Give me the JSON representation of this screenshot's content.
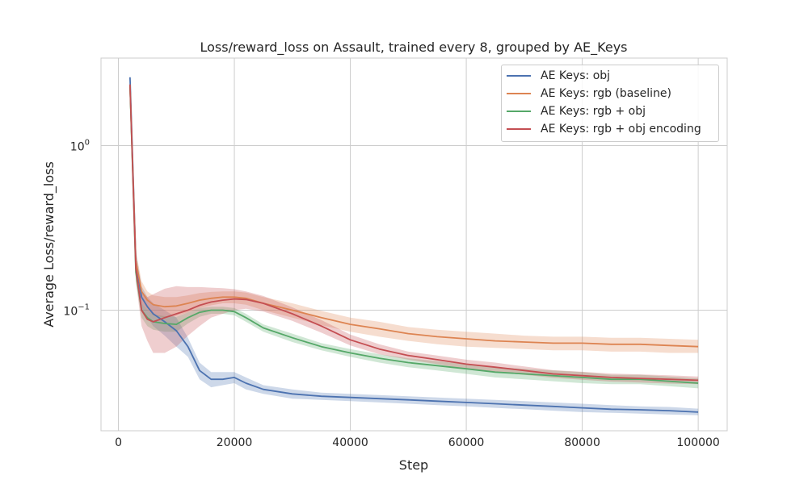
{
  "chart_data": {
    "type": "line",
    "title": "Loss/reward_loss on Assault, trained every 8, grouped by AE_Keys",
    "xlabel": "Step",
    "ylabel": "Average Loss/reward_loss",
    "xlim": [
      -3000,
      105000
    ],
    "ylim": [
      0.0185,
      3.4
    ],
    "yscale": "log",
    "grid": true,
    "legend_position": "top-right",
    "x_ticks": [
      0,
      20000,
      40000,
      60000,
      80000,
      100000
    ],
    "x_tick_labels": [
      "0",
      "20000",
      "40000",
      "60000",
      "80000",
      "100000"
    ],
    "y_ticks": [
      0.1,
      1
    ],
    "y_tick_labels": [
      {
        "base": "10",
        "exp": "−1"
      },
      {
        "base": "10",
        "exp": "0"
      }
    ],
    "x": [
      2000,
      3000,
      4000,
      5000,
      6000,
      8000,
      10000,
      12000,
      14000,
      16000,
      18000,
      20000,
      22000,
      25000,
      30000,
      35000,
      40000,
      45000,
      50000,
      55000,
      60000,
      65000,
      70000,
      75000,
      80000,
      85000,
      90000,
      95000,
      100000
    ],
    "series": [
      {
        "name": "AE Keys: obj",
        "color": "#4c72b0",
        "values": [
          2.6,
          0.2,
          0.12,
          0.105,
          0.095,
          0.085,
          0.075,
          0.06,
          0.043,
          0.038,
          0.038,
          0.039,
          0.036,
          0.033,
          0.031,
          0.03,
          0.0295,
          0.029,
          0.0285,
          0.028,
          0.0275,
          0.027,
          0.0265,
          0.026,
          0.0255,
          0.025,
          0.0248,
          0.0245,
          0.024
        ],
        "lower": [
          2.5,
          0.17,
          0.1,
          0.09,
          0.08,
          0.07,
          0.06,
          0.052,
          0.038,
          0.034,
          0.035,
          0.036,
          0.033,
          0.031,
          0.029,
          0.0285,
          0.028,
          0.0275,
          0.027,
          0.0265,
          0.026,
          0.0255,
          0.025,
          0.0245,
          0.024,
          0.0238,
          0.0235,
          0.0232,
          0.023
        ],
        "upper": [
          2.7,
          0.23,
          0.14,
          0.12,
          0.11,
          0.1,
          0.09,
          0.068,
          0.048,
          0.042,
          0.042,
          0.042,
          0.039,
          0.035,
          0.033,
          0.0315,
          0.031,
          0.0305,
          0.03,
          0.0295,
          0.029,
          0.0285,
          0.028,
          0.0275,
          0.027,
          0.0265,
          0.026,
          0.0258,
          0.0252
        ]
      },
      {
        "name": "AE Keys: rgb (baseline)",
        "color": "#dd8452",
        "values": [
          2.3,
          0.2,
          0.13,
          0.115,
          0.108,
          0.105,
          0.106,
          0.11,
          0.115,
          0.118,
          0.12,
          0.12,
          0.118,
          0.11,
          0.1,
          0.09,
          0.082,
          0.077,
          0.072,
          0.069,
          0.067,
          0.065,
          0.064,
          0.063,
          0.063,
          0.062,
          0.062,
          0.061,
          0.06
        ],
        "lower": [
          2.2,
          0.17,
          0.11,
          0.1,
          0.093,
          0.09,
          0.092,
          0.097,
          0.103,
          0.107,
          0.11,
          0.11,
          0.108,
          0.1,
          0.09,
          0.081,
          0.074,
          0.069,
          0.065,
          0.062,
          0.06,
          0.059,
          0.058,
          0.057,
          0.057,
          0.056,
          0.056,
          0.055,
          0.055
        ],
        "upper": [
          2.4,
          0.23,
          0.15,
          0.13,
          0.123,
          0.12,
          0.12,
          0.123,
          0.127,
          0.129,
          0.13,
          0.13,
          0.128,
          0.12,
          0.11,
          0.099,
          0.09,
          0.085,
          0.079,
          0.076,
          0.074,
          0.072,
          0.07,
          0.069,
          0.069,
          0.068,
          0.068,
          0.067,
          0.066
        ]
      },
      {
        "name": "AE Keys: rgb + obj",
        "color": "#55a868",
        "values": [
          2.3,
          0.17,
          0.1,
          0.09,
          0.085,
          0.083,
          0.082,
          0.09,
          0.097,
          0.1,
          0.1,
          0.098,
          0.09,
          0.078,
          0.068,
          0.06,
          0.055,
          0.051,
          0.048,
          0.046,
          0.044,
          0.042,
          0.041,
          0.04,
          0.039,
          0.038,
          0.038,
          0.037,
          0.036
        ],
        "lower": [
          2.2,
          0.15,
          0.09,
          0.08,
          0.076,
          0.074,
          0.074,
          0.083,
          0.091,
          0.095,
          0.095,
          0.093,
          0.085,
          0.074,
          0.064,
          0.057,
          0.052,
          0.048,
          0.045,
          0.043,
          0.041,
          0.039,
          0.038,
          0.037,
          0.036,
          0.0355,
          0.0355,
          0.0345,
          0.0335
        ],
        "upper": [
          2.4,
          0.19,
          0.11,
          0.1,
          0.094,
          0.092,
          0.091,
          0.097,
          0.103,
          0.105,
          0.105,
          0.103,
          0.095,
          0.082,
          0.072,
          0.063,
          0.058,
          0.054,
          0.051,
          0.049,
          0.047,
          0.045,
          0.044,
          0.043,
          0.042,
          0.0405,
          0.0405,
          0.0395,
          0.0385
        ]
      },
      {
        "name": "AE Keys: rgb + obj encoding",
        "color": "#c44e52",
        "values": [
          2.35,
          0.18,
          0.1,
          0.088,
          0.085,
          0.09,
          0.095,
          0.1,
          0.107,
          0.112,
          0.115,
          0.117,
          0.116,
          0.11,
          0.095,
          0.08,
          0.066,
          0.058,
          0.053,
          0.05,
          0.047,
          0.045,
          0.043,
          0.041,
          0.04,
          0.039,
          0.0385,
          0.038,
          0.0375
        ],
        "lower": [
          2.25,
          0.15,
          0.08,
          0.065,
          0.055,
          0.055,
          0.06,
          0.07,
          0.08,
          0.09,
          0.095,
          0.1,
          0.102,
          0.098,
          0.086,
          0.073,
          0.061,
          0.054,
          0.05,
          0.047,
          0.044,
          0.042,
          0.0405,
          0.0388,
          0.0378,
          0.0368,
          0.0363,
          0.0358,
          0.0355
        ],
        "upper": [
          2.45,
          0.21,
          0.13,
          0.12,
          0.125,
          0.135,
          0.14,
          0.138,
          0.138,
          0.137,
          0.136,
          0.134,
          0.13,
          0.122,
          0.104,
          0.087,
          0.071,
          0.062,
          0.056,
          0.053,
          0.05,
          0.048,
          0.0455,
          0.0432,
          0.0422,
          0.0412,
          0.0407,
          0.0402,
          0.0395
        ]
      }
    ]
  }
}
